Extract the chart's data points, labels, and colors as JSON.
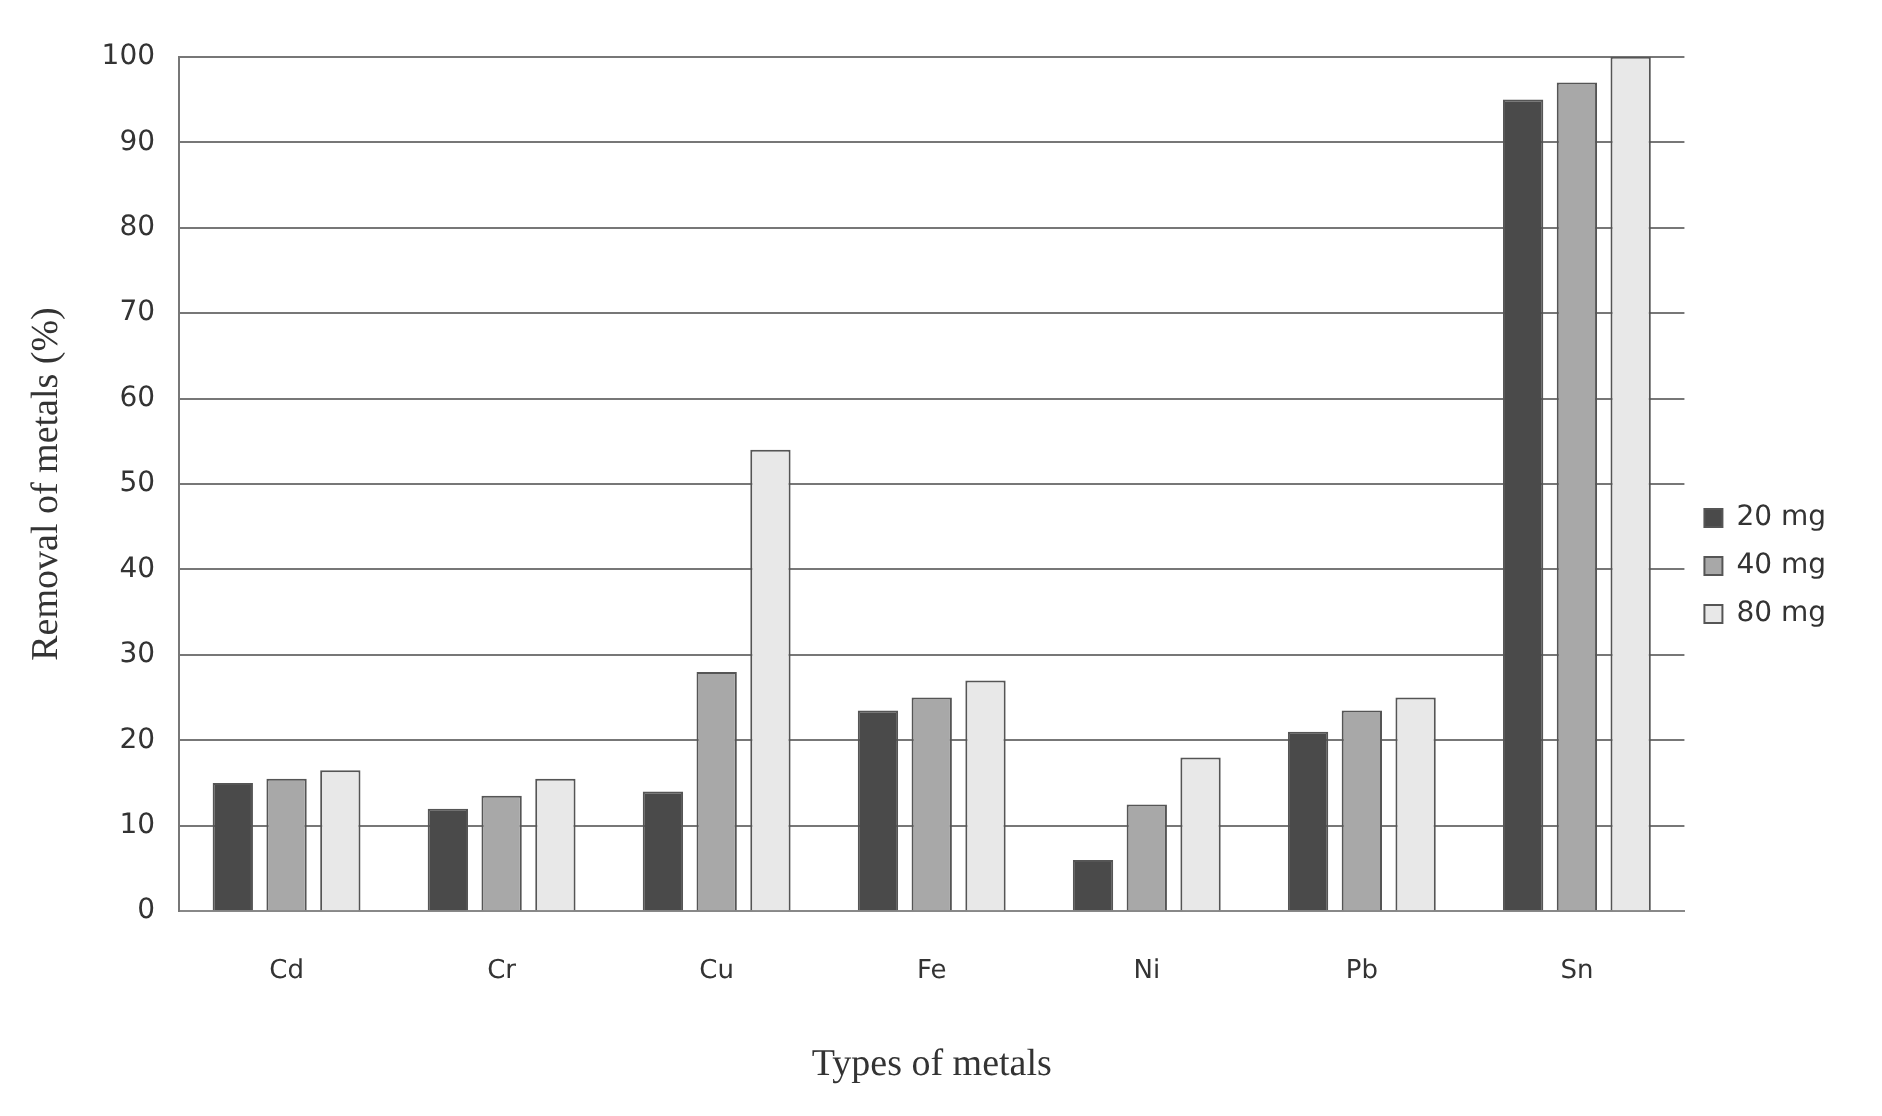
{
  "chart_data": {
    "type": "bar",
    "xlabel": "Types of metals",
    "ylabel": "Removal of metals (%)",
    "categories": [
      "Cd",
      "Cr",
      "Cu",
      "Fe",
      "Ni",
      "Pb",
      "Sn"
    ],
    "series": [
      {
        "name": "20 mg",
        "color": "#4a4a4a",
        "values": [
          15,
          12,
          14,
          23.5,
          6,
          21,
          95
        ]
      },
      {
        "name": "40 mg",
        "color": "#a8a8a8",
        "values": [
          15.5,
          13.5,
          28,
          25,
          12.5,
          23.5,
          97
        ]
      },
      {
        "name": "80 mg",
        "color": "#e8e8e8",
        "values": [
          16.5,
          15.5,
          54,
          27,
          18,
          25,
          100
        ]
      }
    ],
    "ylim": [
      0,
      100
    ],
    "yticks": [
      0,
      10,
      20,
      30,
      40,
      50,
      60,
      70,
      80,
      90,
      100
    ],
    "grid": "y",
    "legend": "right"
  }
}
